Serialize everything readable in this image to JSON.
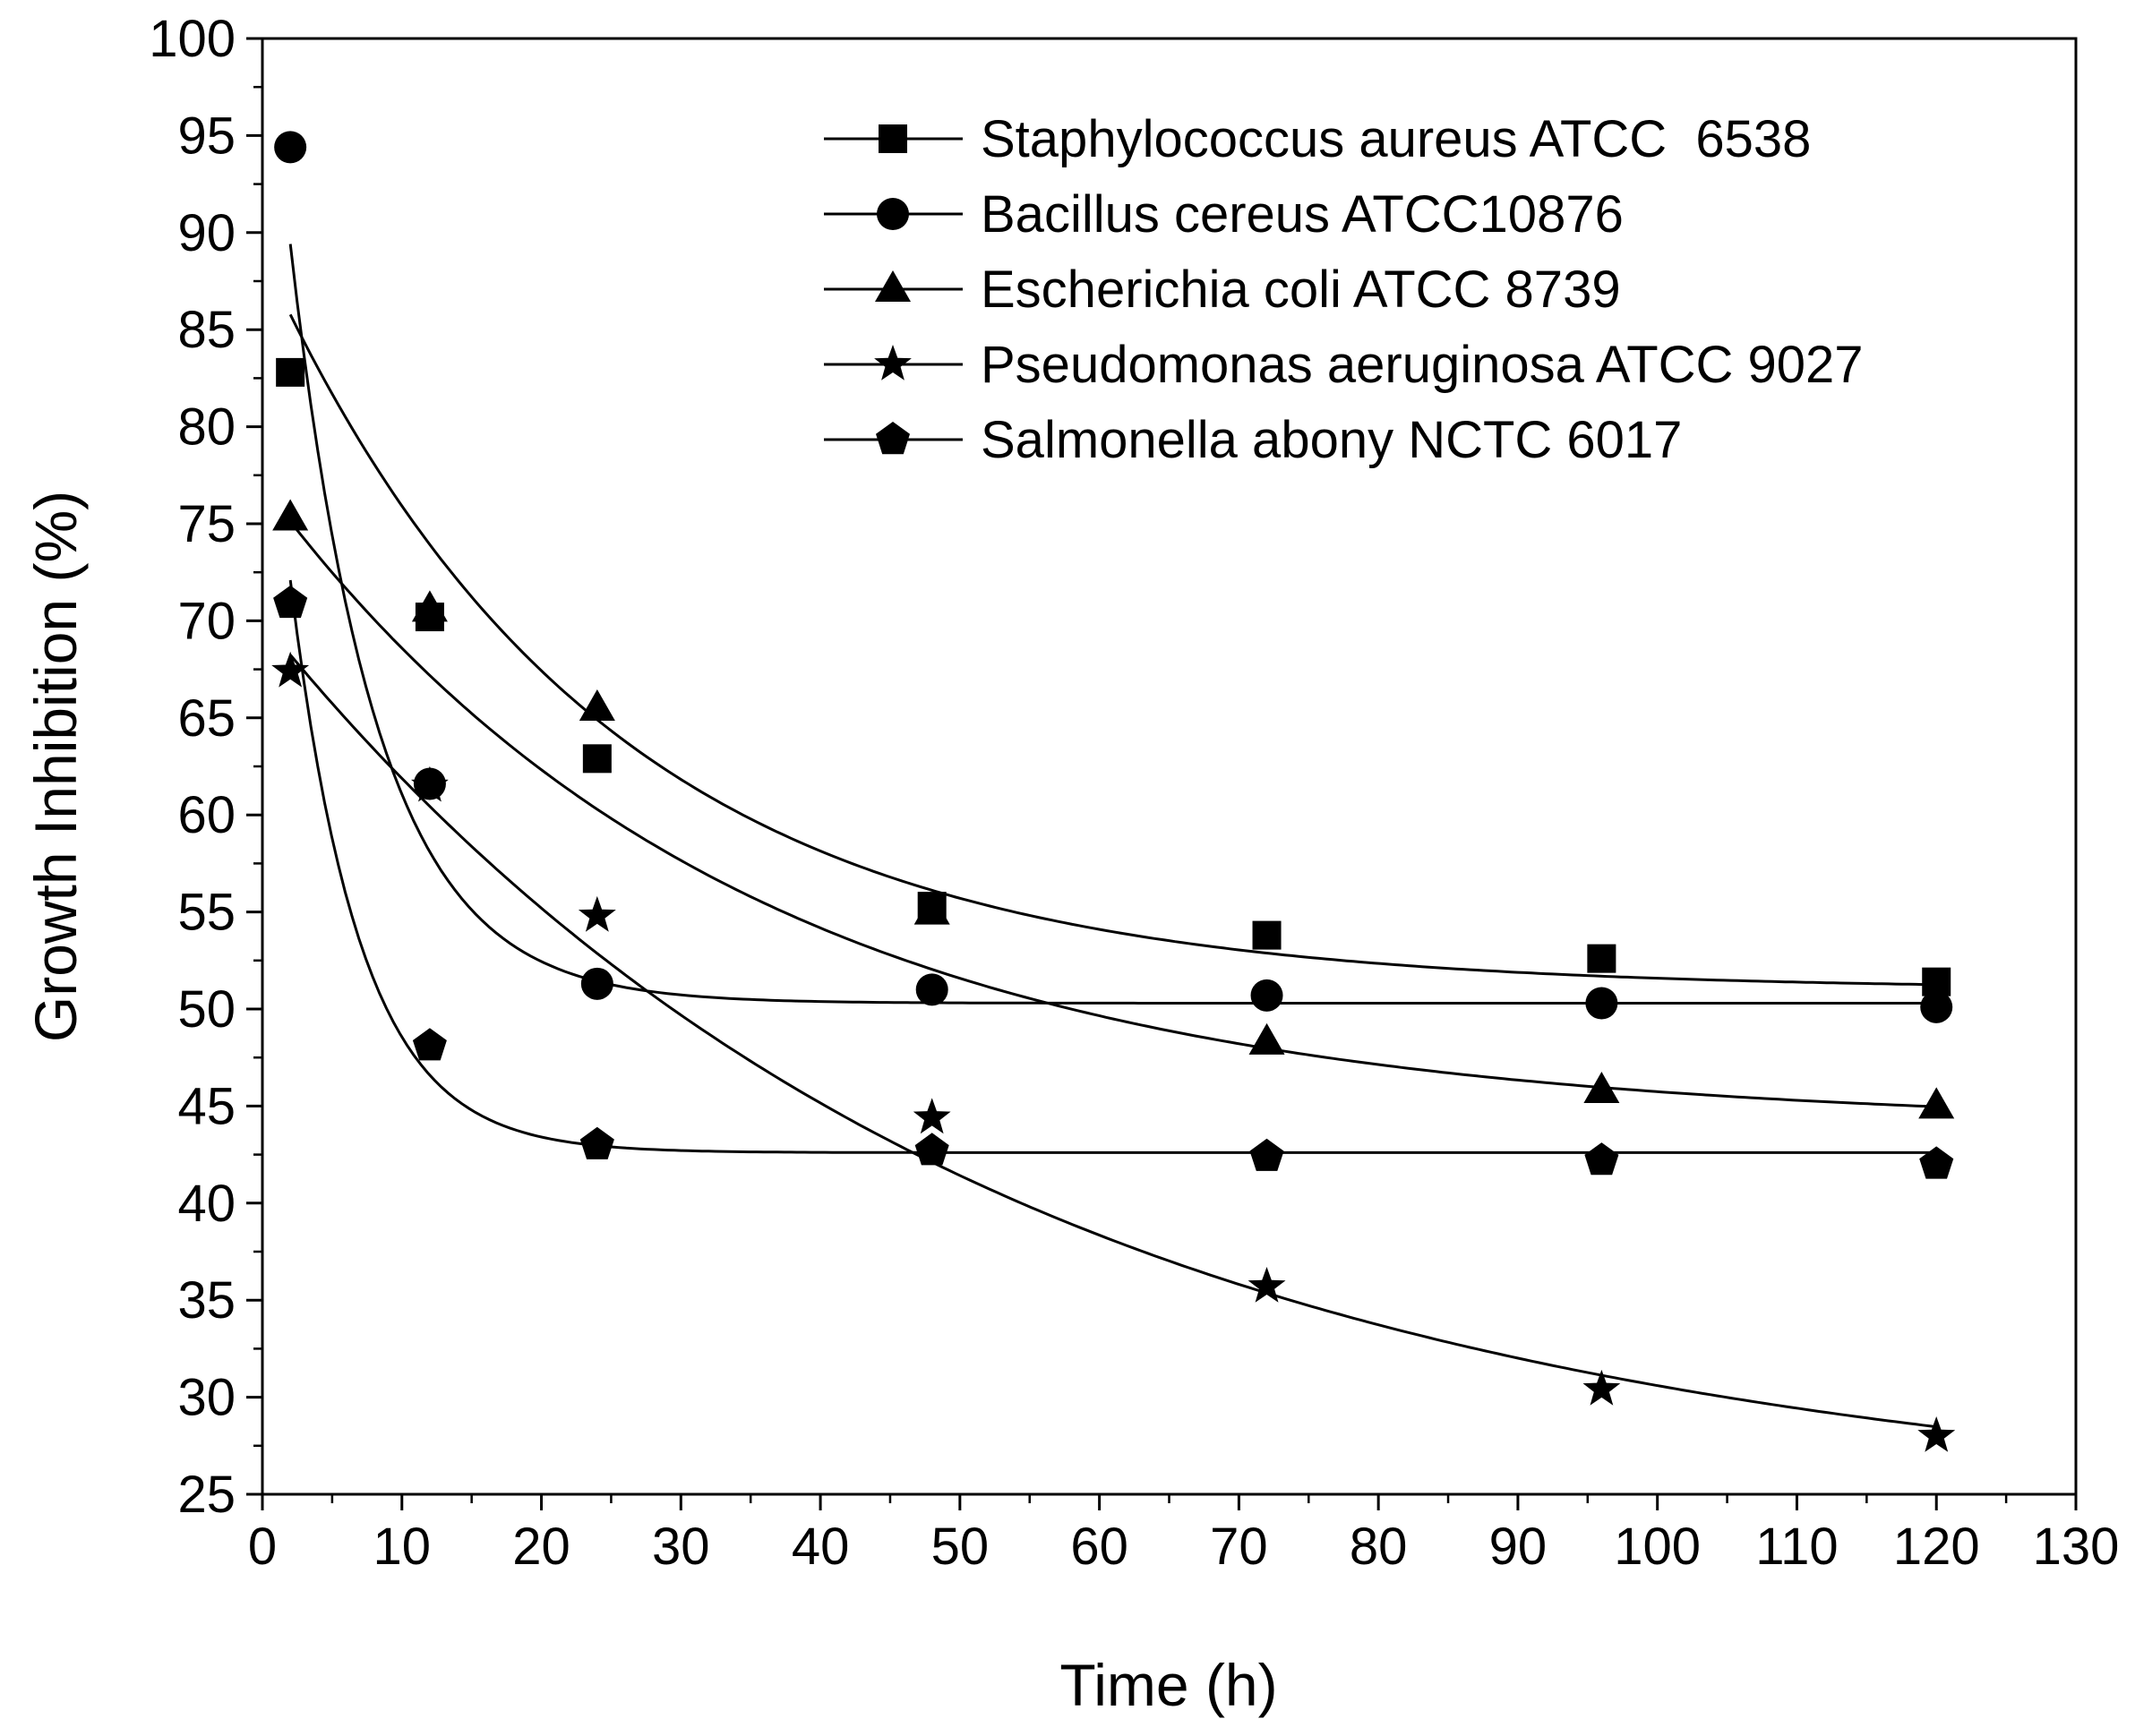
{
  "chart_data": {
    "type": "scatter",
    "title": "",
    "xlabel": "Time (h)",
    "ylabel": "Growth Inhibition (%)",
    "xlim": [
      0,
      130
    ],
    "ylim": [
      25,
      100
    ],
    "xticks": [
      0,
      10,
      20,
      30,
      40,
      50,
      60,
      70,
      80,
      90,
      100,
      110,
      120,
      130
    ],
    "yticks": [
      25,
      30,
      35,
      40,
      45,
      50,
      55,
      60,
      65,
      70,
      75,
      80,
      85,
      90,
      95,
      100
    ],
    "grid": false,
    "legend_position": "top-right",
    "fit_lines": "exponential decay curves through each series",
    "x": [
      2,
      12,
      24,
      48,
      72,
      96,
      120
    ],
    "series": [
      {
        "name": "Staphylococcus aureus ATCC  6538",
        "marker": "square",
        "values": [
          82.8,
          70.2,
          62.9,
          55.3,
          53.8,
          52.6,
          51.4
        ],
        "fit": {
          "y0": 51.0,
          "a": 37.8,
          "tau": 24.0
        }
      },
      {
        "name": "Bacillus cereus ATCC10876",
        "marker": "circle",
        "values": [
          94.4,
          61.6,
          51.3,
          51.0,
          50.7,
          50.3,
          50.1
        ],
        "fit": {
          "y0": 50.3,
          "a": 54.0,
          "tau": 6.2
        }
      },
      {
        "name": "Escherichia coli ATCC 8739",
        "marker": "triangle",
        "values": [
          75.3,
          70.6,
          65.5,
          55.0,
          48.3,
          45.8,
          45.0
        ],
        "fit": {
          "y0": 44.0,
          "a": 33.0,
          "tau": 34.0
        }
      },
      {
        "name": "Pseudomonas aeruginosa ATCC 9027",
        "marker": "star",
        "values": [
          67.4,
          61.5,
          54.8,
          44.4,
          35.7,
          30.4,
          28.0
        ],
        "fit": {
          "y0": 24.0,
          "a": 46.0,
          "tau": 51.5
        }
      },
      {
        "name": "Salmonella abony NCTC 6017",
        "marker": "pentagon",
        "values": [
          70.9,
          48.1,
          43.0,
          42.7,
          42.4,
          42.2,
          42.0
        ],
        "fit": {
          "y0": 42.6,
          "a": 44.0,
          "tau": 5.0
        }
      }
    ]
  }
}
